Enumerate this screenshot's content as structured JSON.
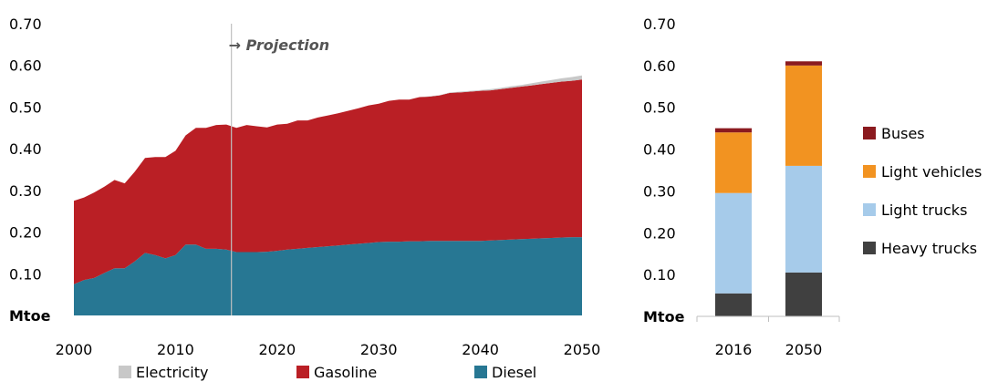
{
  "chart_data": [
    {
      "type": "area",
      "stacked": true,
      "unit_label": "Mtoe",
      "annotation": "→ Projection",
      "projection_start": 2015.5,
      "xlim": [
        2000,
        2050
      ],
      "ylim": [
        0,
        0.7
      ],
      "x_ticks": [
        2000,
        2010,
        2020,
        2030,
        2040,
        2050
      ],
      "y_ticks": [
        "0.70",
        "0.60",
        "0.50",
        "0.40",
        "0.30",
        "0.20",
        "0.10"
      ],
      "y_tick_values": [
        0.7,
        0.6,
        0.5,
        0.4,
        0.3,
        0.2,
        0.1
      ],
      "x": [
        2000,
        2001,
        2002,
        2003,
        2004,
        2005,
        2006,
        2007,
        2008,
        2009,
        2010,
        2011,
        2012,
        2013,
        2014,
        2015,
        2016,
        2017,
        2018,
        2019,
        2020,
        2021,
        2022,
        2023,
        2024,
        2025,
        2026,
        2027,
        2028,
        2029,
        2030,
        2031,
        2032,
        2033,
        2034,
        2035,
        2036,
        2037,
        2038,
        2039,
        2040,
        2041,
        2042,
        2043,
        2044,
        2045,
        2046,
        2047,
        2048,
        2049,
        2050
      ],
      "series": [
        {
          "name": "Diesel",
          "color": "#277793",
          "values": [
            0.075,
            0.085,
            0.09,
            0.102,
            0.113,
            0.113,
            0.13,
            0.15,
            0.145,
            0.137,
            0.145,
            0.17,
            0.17,
            0.16,
            0.16,
            0.158,
            0.152,
            0.152,
            0.152,
            0.153,
            0.155,
            0.158,
            0.16,
            0.162,
            0.164,
            0.166,
            0.168,
            0.17,
            0.172,
            0.174,
            0.176,
            0.177,
            0.177,
            0.178,
            0.178,
            0.179,
            0.179,
            0.179,
            0.179,
            0.179,
            0.179,
            0.18,
            0.181,
            0.182,
            0.183,
            0.184,
            0.185,
            0.186,
            0.187,
            0.188,
            0.188
          ]
        },
        {
          "name": "Gasoline",
          "color": "#BA1F25",
          "values": [
            0.2,
            0.198,
            0.205,
            0.207,
            0.212,
            0.204,
            0.215,
            0.228,
            0.235,
            0.243,
            0.25,
            0.262,
            0.28,
            0.29,
            0.297,
            0.3,
            0.298,
            0.305,
            0.302,
            0.298,
            0.303,
            0.302,
            0.308,
            0.306,
            0.311,
            0.314,
            0.317,
            0.321,
            0.325,
            0.33,
            0.332,
            0.338,
            0.341,
            0.34,
            0.346,
            0.346,
            0.349,
            0.355,
            0.356,
            0.358,
            0.36,
            0.36,
            0.362,
            0.364,
            0.366,
            0.368,
            0.37,
            0.372,
            0.374,
            0.375,
            0.378
          ]
        },
        {
          "name": "Electricity",
          "color": "#C8C8C8",
          "values": [
            0,
            0,
            0,
            0,
            0,
            0,
            0,
            0,
            0,
            0,
            0,
            0,
            0,
            0,
            0,
            0,
            0,
            0,
            0,
            0,
            0,
            0,
            0,
            0,
            0,
            0,
            0,
            0,
            0,
            0,
            0,
            0,
            0,
            0,
            0,
            0.001,
            0.001,
            0.001,
            0.002,
            0.002,
            0.002,
            0.003,
            0.003,
            0.004,
            0.004,
            0.005,
            0.006,
            0.007,
            0.008,
            0.009,
            0.01
          ]
        }
      ],
      "legend": [
        {
          "label": "Electricity",
          "color": "#C8C8C8"
        },
        {
          "label": "Gasoline",
          "color": "#BA1F25"
        },
        {
          "label": "Diesel",
          "color": "#277793"
        }
      ]
    },
    {
      "type": "bar",
      "stacked": true,
      "unit_label": "Mtoe",
      "ylim": [
        0,
        0.7
      ],
      "y_ticks": [
        "0.70",
        "0.60",
        "0.50",
        "0.40",
        "0.30",
        "0.20",
        "0.10"
      ],
      "y_tick_values": [
        0.7,
        0.6,
        0.5,
        0.4,
        0.3,
        0.2,
        0.1
      ],
      "categories": [
        "2016",
        "2050"
      ],
      "series": [
        {
          "name": "Heavy trucks",
          "color": "#404040",
          "values": [
            0.055,
            0.105
          ]
        },
        {
          "name": "Light trucks",
          "color": "#A6CBEA",
          "values": [
            0.24,
            0.255
          ]
        },
        {
          "name": "Light vehicles",
          "color": "#F29321",
          "values": [
            0.145,
            0.24
          ]
        },
        {
          "name": "Buses",
          "color": "#8B1A1F",
          "values": [
            0.01,
            0.01
          ]
        }
      ],
      "legend": [
        {
          "label": "Buses",
          "color": "#8B1A1F"
        },
        {
          "label": "Light vehicles",
          "color": "#F29321"
        },
        {
          "label": "Light trucks",
          "color": "#A6CBEA"
        },
        {
          "label": "Heavy trucks",
          "color": "#404040"
        }
      ]
    }
  ]
}
